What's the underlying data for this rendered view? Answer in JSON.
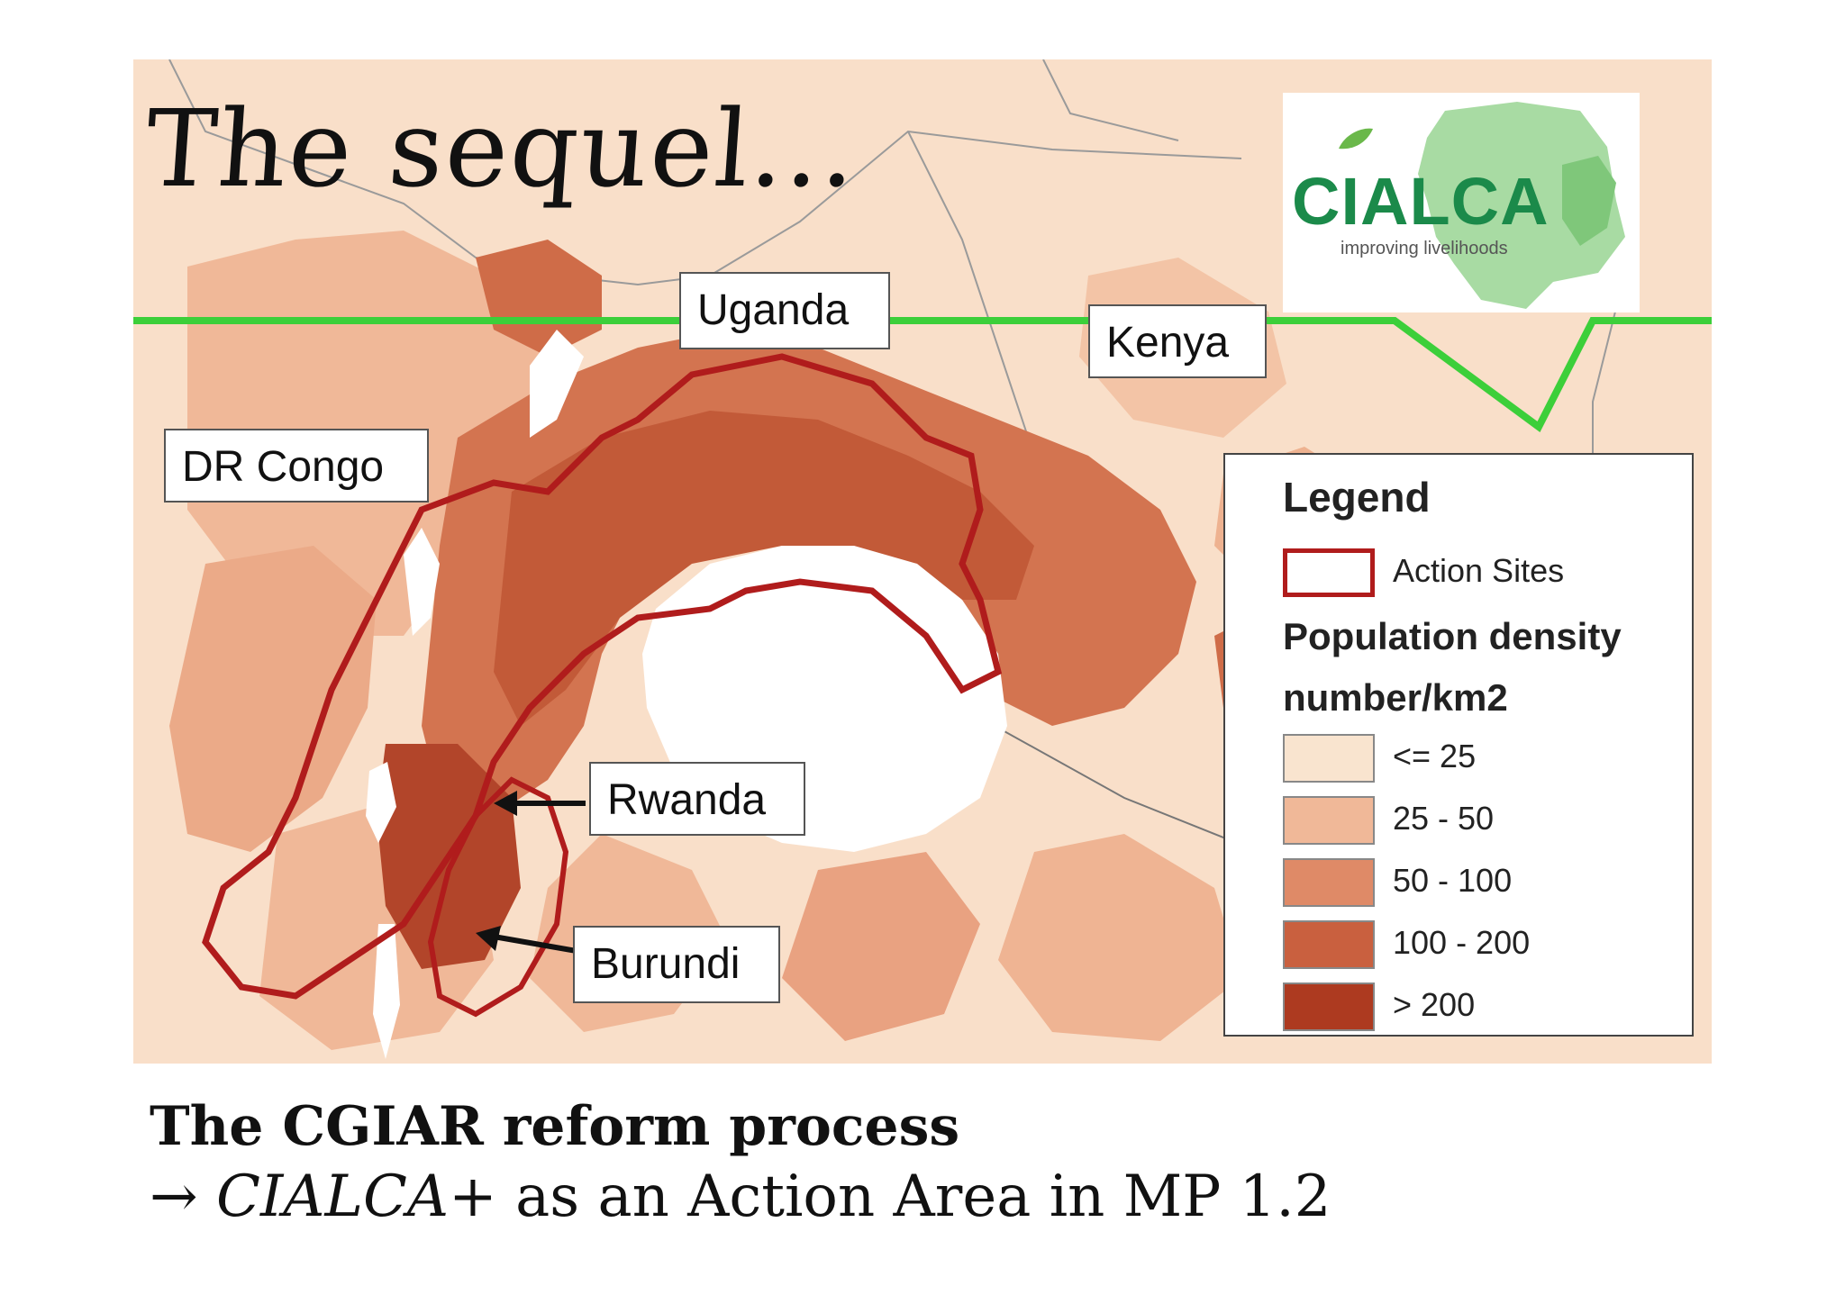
{
  "slide": {
    "title": "The sequel...",
    "caption_heading": "The CGIAR reform process",
    "caption_arrow": "→",
    "caption_italic": "CIALCA+",
    "caption_rest": " as an Action Area in MP 1.2"
  },
  "map": {
    "country_labels": {
      "uganda": "Uganda",
      "kenya": "Kenya",
      "dr_congo": "DR Congo",
      "rwanda": "Rwanda",
      "burundi": "Burundi"
    },
    "colors": {
      "background": "#f9dfc9",
      "boundary_action_sites": "#b01c1c",
      "cutoff_line": "#3ccf3a",
      "water": "#ffffff"
    }
  },
  "logo": {
    "name": "CIALCA",
    "tagline": "improving livelihoods",
    "color": "#1b8a4a"
  },
  "legend": {
    "title": "Legend",
    "action_sites_label": "Action Sites",
    "density_heading": "Population density",
    "density_unit": "number/km2",
    "classes": [
      {
        "label": "<= 25",
        "color": "#f9e4cf"
      },
      {
        "label": "25 - 50",
        "color": "#f0b898"
      },
      {
        "label": "50 - 100",
        "color": "#df8a67"
      },
      {
        "label": "100 - 200",
        "color": "#c9603f"
      },
      {
        "label": "> 200",
        "color": "#ad3a20"
      }
    ]
  }
}
